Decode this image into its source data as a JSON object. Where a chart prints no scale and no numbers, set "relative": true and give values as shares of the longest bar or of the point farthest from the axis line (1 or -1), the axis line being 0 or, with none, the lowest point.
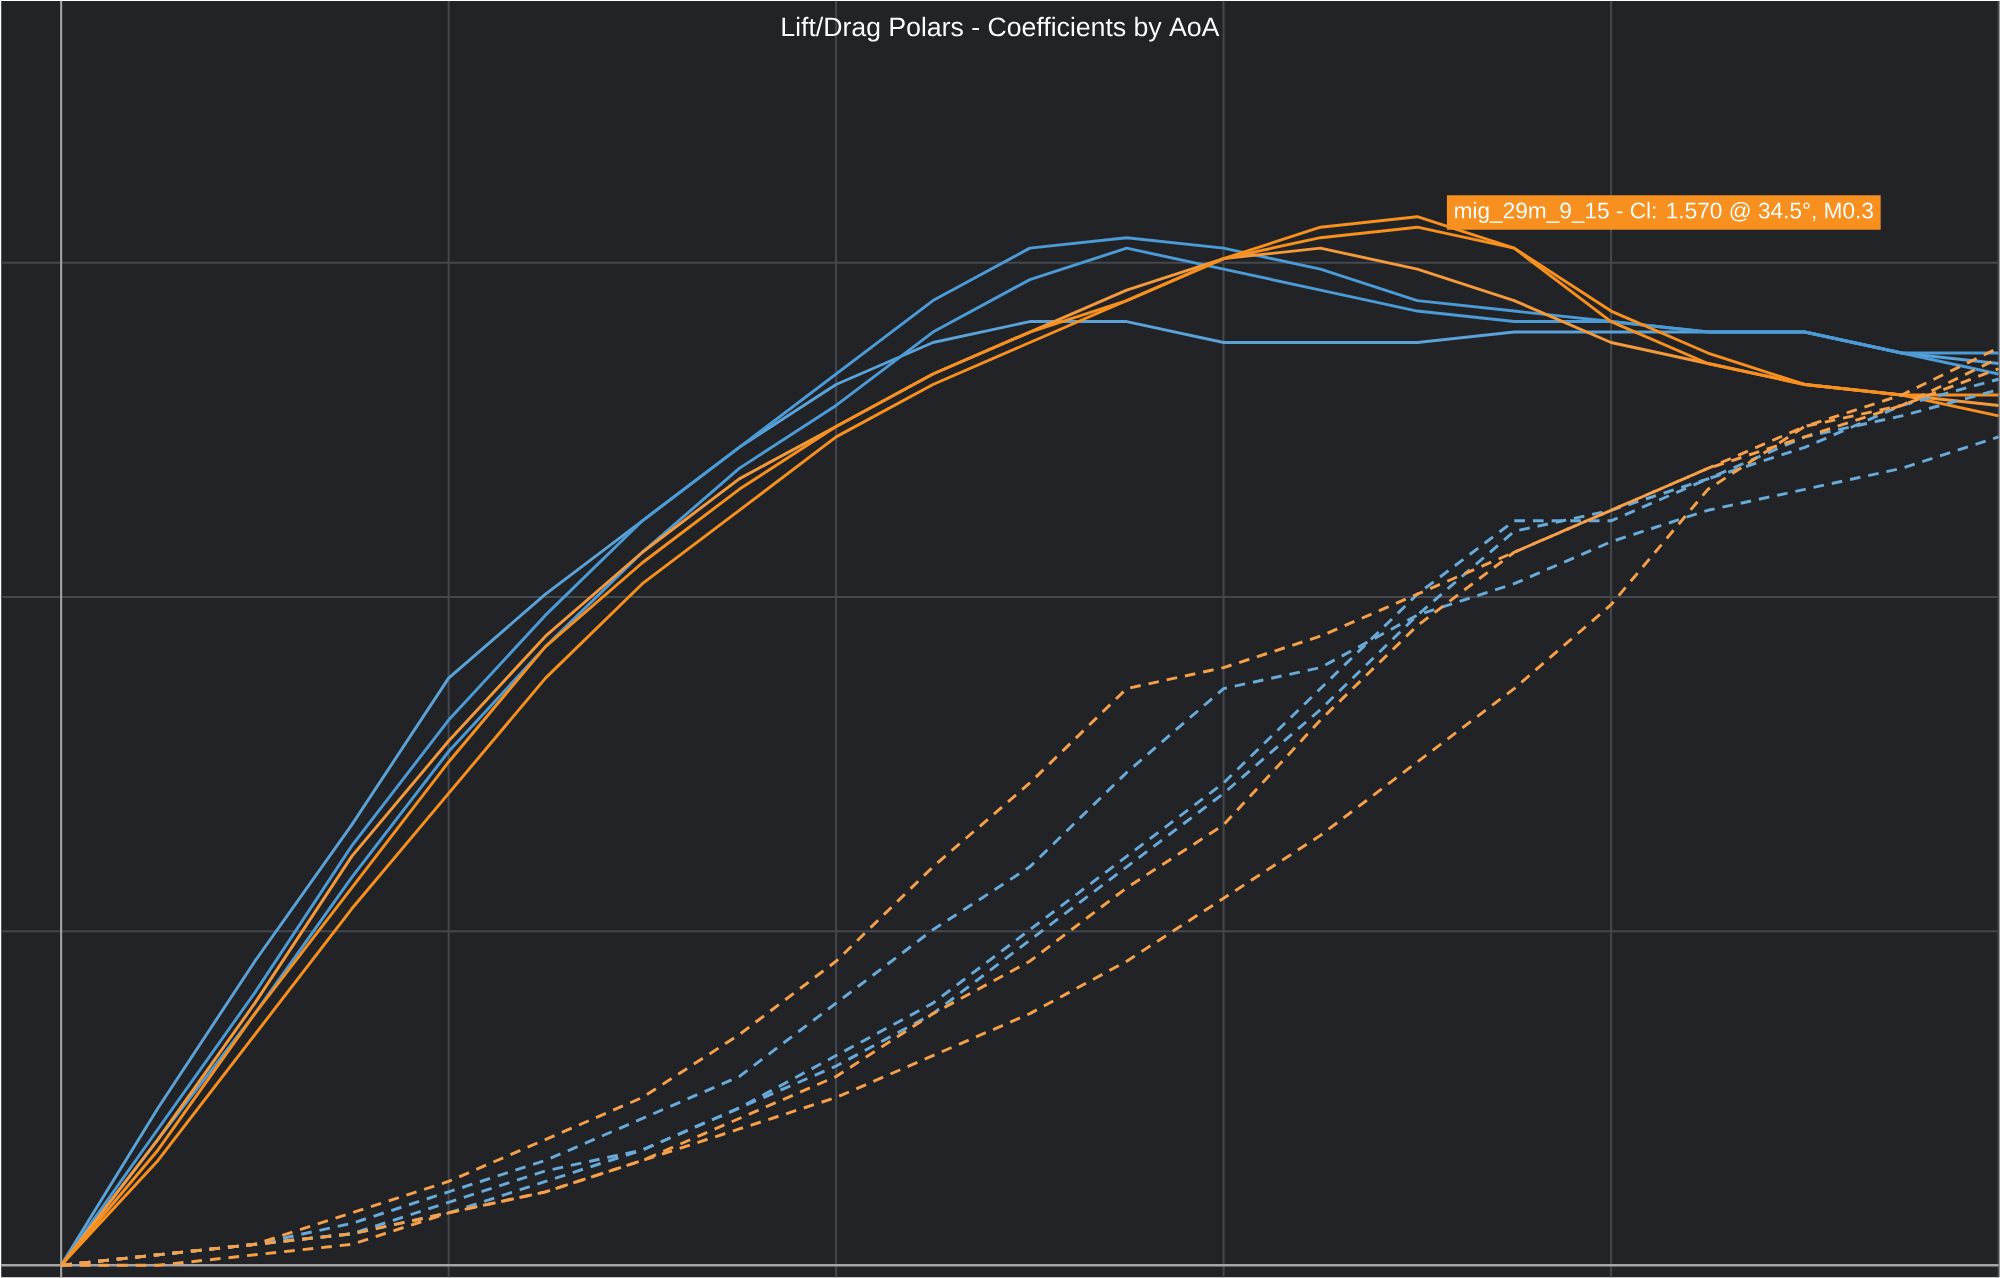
{
  "chart_data": {
    "type": "line",
    "title": "Lift/Drag Polars - Coefficients by AoA",
    "relative": true,
    "grid": true,
    "line_style": "solid",
    "categories": [
      null,
      null,
      null,
      null,
      null,
      null,
      null,
      null,
      null,
      null,
      null,
      null,
      null,
      null,
      null,
      null,
      null,
      null,
      null,
      null,
      null
    ],
    "annotations": [
      "mig_29m_9_15 - Cl: 1.570 @ 34.5°, M0.3"
    ],
    "series": [
      {
        "color": "#5aa2d8",
        "values": [
          0,
          0.15,
          0.29,
          0.42,
          0.56,
          0.64,
          0.71,
          0.78,
          0.84,
          0.88,
          0.9,
          0.9,
          0.88,
          0.88,
          0.88,
          0.89,
          0.89,
          0.89,
          0.89,
          0.87,
          0.86
        ]
      },
      {
        "color": "#4c9bd6",
        "values": [
          0,
          0.13,
          0.26,
          0.4,
          0.52,
          0.62,
          0.71,
          0.78,
          0.85,
          0.92,
          0.97,
          0.98,
          0.97,
          0.95,
          0.92,
          0.91,
          0.9,
          0.89,
          0.89,
          0.87,
          0.87
        ]
      },
      {
        "color": "#4c9bd6",
        "values": [
          0,
          0.12,
          0.24,
          0.37,
          0.49,
          0.59,
          0.68,
          0.76,
          0.82,
          0.89,
          0.94,
          0.97,
          0.95,
          0.93,
          0.91,
          0.9,
          0.9,
          0.89,
          0.89,
          0.87,
          0.85
        ]
      },
      {
        "color": "#f59a3c",
        "values": [
          0,
          0.12,
          0.25,
          0.39,
          0.5,
          0.6,
          0.68,
          0.75,
          0.8,
          0.85,
          0.89,
          0.93,
          0.96,
          0.97,
          0.95,
          0.92,
          0.88,
          0.86,
          0.84,
          0.83,
          0.82
        ]
      },
      {
        "color": "#f7901e",
        "values": [
          0,
          0.11,
          0.24,
          0.36,
          0.48,
          0.59,
          0.67,
          0.74,
          0.8,
          0.85,
          0.89,
          0.92,
          0.96,
          0.99,
          1.0,
          0.97,
          0.9,
          0.86,
          0.84,
          0.83,
          0.83
        ]
      },
      {
        "color": "#f7901e",
        "values": [
          0,
          0.1,
          0.22,
          0.34,
          0.45,
          0.56,
          0.65,
          0.72,
          0.79,
          0.84,
          0.88,
          0.92,
          0.96,
          0.98,
          0.99,
          0.97,
          0.91,
          0.87,
          0.84,
          0.83,
          0.81
        ]
      },
      {
        "color": "#6aaad9",
        "line_style": "dashed",
        "values": [
          0,
          0.01,
          0.02,
          0.04,
          0.07,
          0.1,
          0.14,
          0.18,
          0.25,
          0.32,
          0.38,
          0.47,
          0.55,
          0.57,
          0.62,
          0.65,
          0.69,
          0.72,
          0.74,
          0.76,
          0.79
        ]
      },
      {
        "color": "#6aaad9",
        "line_style": "dashed",
        "values": [
          0,
          0.01,
          0.02,
          0.03,
          0.06,
          0.09,
          0.11,
          0.15,
          0.2,
          0.25,
          0.32,
          0.39,
          0.46,
          0.55,
          0.64,
          0.71,
          0.71,
          0.75,
          0.78,
          0.82,
          0.845
        ]
      },
      {
        "color": "#6aaad9",
        "line_style": "dashed",
        "values": [
          0,
          0.01,
          0.02,
          0.03,
          0.05,
          0.08,
          0.11,
          0.15,
          0.19,
          0.24,
          0.31,
          0.38,
          0.45,
          0.53,
          0.62,
          0.7,
          0.72,
          0.75,
          0.79,
          0.81,
          0.835
        ]
      },
      {
        "color": "#f7a04a",
        "line_style": "dashed",
        "values": [
          0,
          0.01,
          0.02,
          0.05,
          0.08,
          0.12,
          0.16,
          0.22,
          0.29,
          0.38,
          0.46,
          0.55,
          0.57,
          0.6,
          0.64,
          0.68,
          0.72,
          0.76,
          0.8,
          0.82,
          0.865
        ]
      },
      {
        "color": "#f7a04a",
        "line_style": "dashed",
        "values": [
          0,
          0.01,
          0.02,
          0.03,
          0.05,
          0.07,
          0.1,
          0.14,
          0.18,
          0.24,
          0.29,
          0.36,
          0.42,
          0.52,
          0.61,
          0.68,
          0.72,
          0.76,
          0.79,
          0.82,
          0.855
        ]
      },
      {
        "color": "#f7a04a",
        "line_style": "dashed",
        "values": [
          0,
          0,
          0.01,
          0.02,
          0.05,
          0.07,
          0.1,
          0.13,
          0.16,
          0.2,
          0.24,
          0.29,
          0.35,
          0.41,
          0.48,
          0.55,
          0.63,
          0.74,
          0.8,
          0.83,
          0.875
        ]
      }
    ]
  }
}
